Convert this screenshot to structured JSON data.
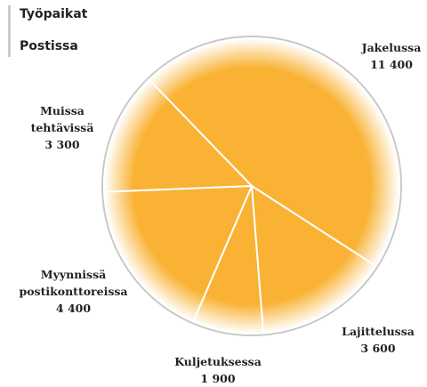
{
  "chart_data": {
    "type": "pie",
    "title": "Työpaikat",
    "subtitle": "Postissa",
    "categories": [
      "Jakelussa",
      "Lajittelussa",
      "Kuljetuksessa",
      "Myynnissä postikonttoreissa",
      "Muissa tehtävissä"
    ],
    "values": [
      11400,
      3600,
      1900,
      4400,
      3300
    ],
    "value_labels": [
      "11 400",
      "3 600",
      "1 900",
      "4 400",
      "3 300"
    ],
    "color": "#f9b233"
  }
}
